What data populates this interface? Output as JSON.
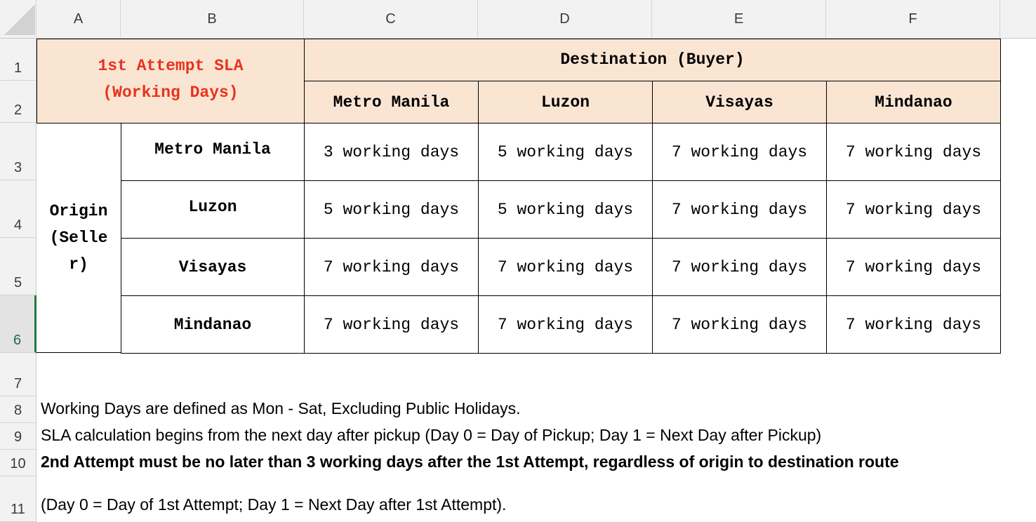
{
  "columns": [
    "A",
    "B",
    "C",
    "D",
    "E",
    "F"
  ],
  "rows": [
    "1",
    "2",
    "3",
    "4",
    "5",
    "6",
    "7",
    "8",
    "9",
    "10",
    "11"
  ],
  "table": {
    "title_line1": "1st Attempt SLA",
    "title_line2": "(Working Days)",
    "dest_header": "Destination (Buyer)",
    "dest_cols": [
      "Metro Manila",
      "Luzon",
      "Visayas",
      "Mindanao"
    ],
    "origin_line1": "Origin",
    "origin_line2": "(Selle",
    "origin_line3": "r)",
    "origins": [
      {
        "name": "Metro Manila",
        "values": [
          "3 working days",
          "5 working days",
          "7 working days",
          "7 working days"
        ]
      },
      {
        "name": "Luzon",
        "values": [
          "5 working days",
          "5 working days",
          "7 working days",
          "7 working days"
        ]
      },
      {
        "name": "Visayas",
        "values": [
          "7 working days",
          "7 working days",
          "7 working days",
          "7 working days"
        ]
      },
      {
        "name": "Mindanao",
        "values": [
          "7 working days",
          "7 working days",
          "7 working days",
          "7 working days"
        ]
      }
    ]
  },
  "notes": {
    "row8": "Working Days are defined as Mon - Sat, Excluding Public Holidays.",
    "row9": "SLA calculation begins from the next day after pickup (Day 0 = Day of Pickup; Day 1 = Next Day after Pickup)",
    "row10": "2nd Attempt must be no later than 3 working days after the 1st Attempt, regardless of origin to destination route",
    "row11": "(Day 0 = Day of 1st Attempt; Day 1 = Next Day after 1st Attempt)."
  }
}
